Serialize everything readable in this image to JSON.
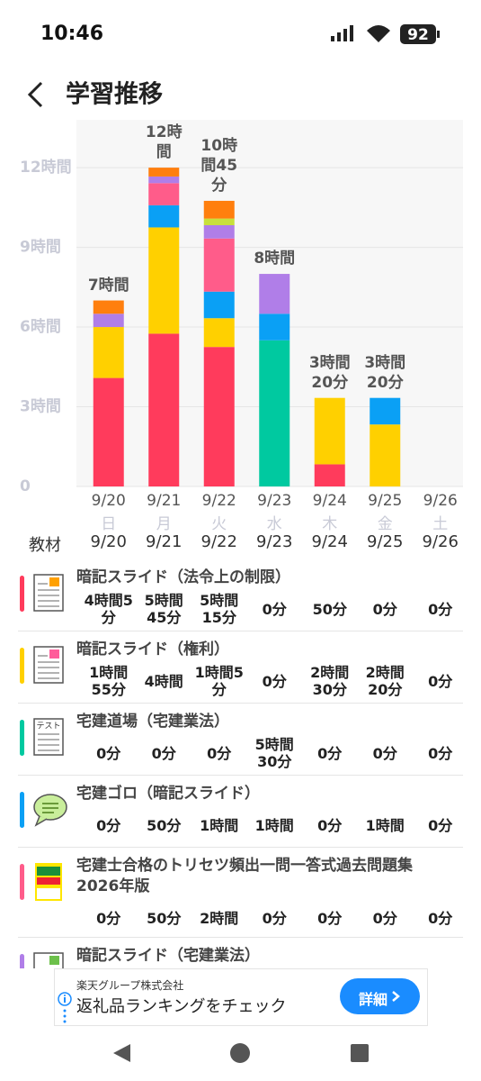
{
  "status_bar": {
    "time": "10:46",
    "battery": "92"
  },
  "header": {
    "title": "学習推移"
  },
  "chart_data": {
    "type": "stacked-bar",
    "categories": [
      "9/20",
      "9/21",
      "9/22",
      "9/23",
      "9/24",
      "9/25",
      "9/26"
    ],
    "weekdays": [
      "日",
      "月",
      "火",
      "水",
      "木",
      "金",
      "土"
    ],
    "series": [
      {
        "name": "暗記スライド（法令上の制限）",
        "color": "#ff3b5c",
        "values": [
          4.083,
          5.75,
          5.25,
          0,
          0.833,
          0,
          0
        ]
      },
      {
        "name": "暗記スライド（権利）",
        "color": "#ffd000",
        "values": [
          1.917,
          4,
          1.083,
          0,
          2.5,
          2.333,
          0
        ]
      },
      {
        "name": "宅建道場（宅建業法）",
        "color": "#00c9a0",
        "values": [
          0,
          0,
          0,
          5.5,
          0,
          0,
          0
        ]
      },
      {
        "name": "宅建ゴロ（暗記スライド）",
        "color": "#0aa0f5",
        "values": [
          0,
          0.833,
          1,
          1,
          0,
          1,
          0
        ]
      },
      {
        "name": "宅建士合格のトリセツ頻出一問一答式過去問題集 2026年版",
        "color": "#ff5c8a",
        "values": [
          0,
          0.833,
          2,
          0,
          0,
          0,
          0
        ]
      },
      {
        "name": "暗記スライド（宅建業法）",
        "color": "#b07ee8",
        "values": [
          0.5,
          0.25,
          0.5,
          1.5,
          0,
          0,
          0
        ]
      },
      {
        "color": "#c8e03c",
        "values": [
          0,
          0,
          0.25,
          0,
          0,
          0,
          0
        ]
      },
      {
        "color": "#ff7f0e",
        "values": [
          0.5,
          0.333,
          0.667,
          0,
          0,
          0,
          0
        ]
      }
    ],
    "total_labels": [
      "7時間",
      "12時間",
      "10時間45分",
      "8時間",
      "3時間20分",
      "3時間20分",
      null
    ],
    "ylim": [
      0,
      13.8
    ],
    "yticks": [
      0,
      {
        "value": 3,
        "label": "3時間"
      },
      {
        "value": 6,
        "label": "6時間"
      },
      {
        "value": 9,
        "label": "9時間"
      },
      {
        "value": 12,
        "label": "12時間"
      }
    ],
    "grid": true
  },
  "table": {
    "header": [
      "教材",
      "9/20",
      "9/21",
      "9/22",
      "9/23",
      "9/24",
      "9/25",
      "9/26"
    ],
    "rows": [
      {
        "values": [
          "4時間5分",
          "5時間45分",
          "5時間15分",
          "0分",
          "50分",
          "0分",
          "0分"
        ]
      },
      {
        "values": [
          "1時間55分",
          "4時間",
          "1時間5分",
          "0分",
          "2時間30分",
          "2時間20分",
          "0分"
        ]
      },
      {
        "icon_text": "テスト",
        "values": [
          "0分",
          "0分",
          "0分",
          "5時間30分",
          "0分",
          "0分",
          "0分"
        ]
      },
      {
        "values": [
          "0分",
          "50分",
          "1時間",
          "1時間",
          "0分",
          "1時間",
          "0分"
        ]
      },
      {
        "values": [
          "0分",
          "50分",
          "2時間",
          "0分",
          "0分",
          "0分",
          "0分"
        ]
      }
    ]
  },
  "ad": {
    "company": "楽天グループ株式会社",
    "text": "返礼品ランキングをチェック",
    "button": "詳細"
  }
}
